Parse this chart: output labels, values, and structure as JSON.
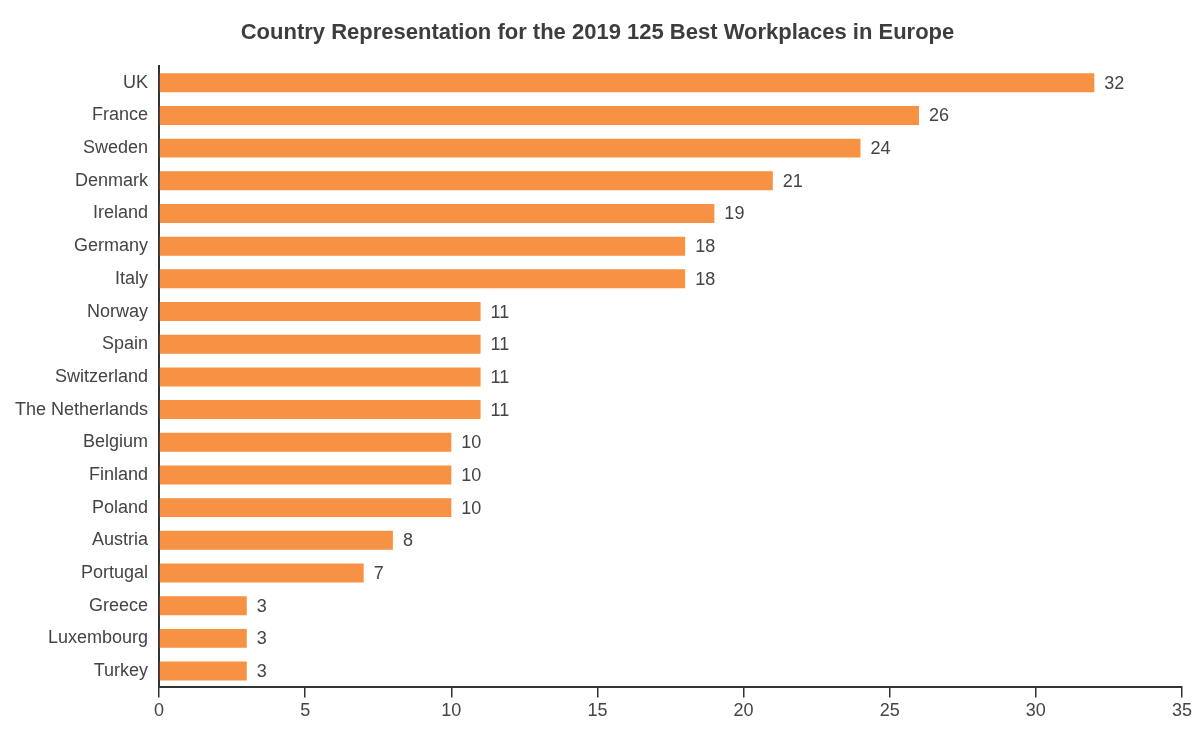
{
  "chart_data": {
    "type": "bar",
    "orientation": "horizontal",
    "title": "Country Representation for the 2019 125 Best Workplaces in Europe",
    "categories": [
      "UK",
      "France",
      "Sweden",
      "Denmark",
      "Ireland",
      "Germany",
      "Italy",
      "Norway",
      "Spain",
      "Switzerland",
      "The Netherlands",
      "Belgium",
      "Finland",
      "Poland",
      "Austria",
      "Portugal",
      "Greece",
      "Luxembourg",
      "Turkey"
    ],
    "values": [
      32,
      26,
      24,
      21,
      19,
      18,
      18,
      11,
      11,
      11,
      11,
      10,
      10,
      10,
      8,
      7,
      3,
      3,
      3
    ],
    "color": "#f79143",
    "xlim": [
      0,
      35
    ],
    "xticks": [
      0,
      5,
      10,
      15,
      20,
      25,
      30,
      35
    ],
    "data_labels": true,
    "grid": false,
    "legend": false
  }
}
